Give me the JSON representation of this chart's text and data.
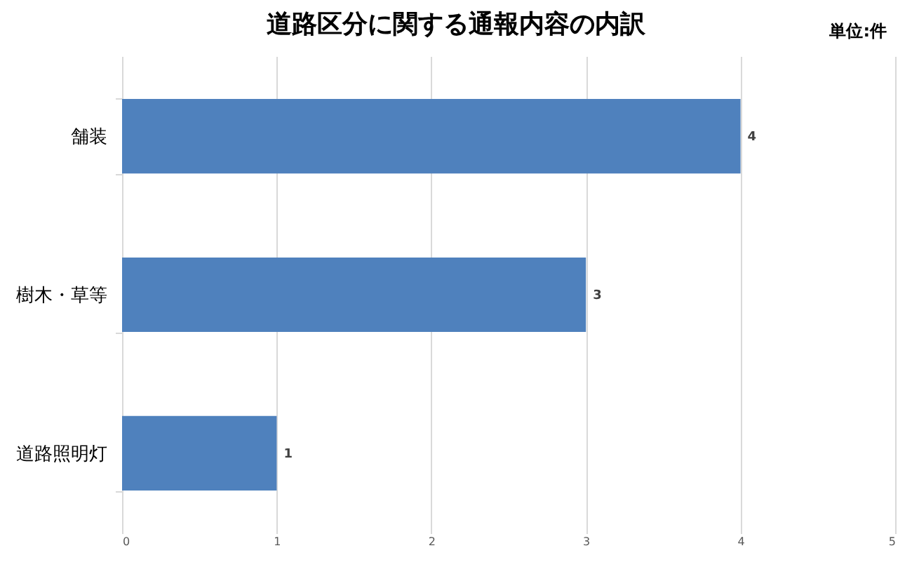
{
  "chart_data": {
    "type": "bar",
    "orientation": "horizontal",
    "title": "道路区分に関する通報内容の内訳",
    "annotations": [
      "単位:件"
    ],
    "categories": [
      "舗装",
      "樹木・草等",
      "道路照明灯"
    ],
    "values": [
      4,
      3,
      1
    ],
    "color": "#4f81bd",
    "xlim": [
      0,
      5
    ],
    "xticks": [
      0,
      1,
      2,
      3,
      4,
      5
    ],
    "grid": "x",
    "data_labels": true
  }
}
